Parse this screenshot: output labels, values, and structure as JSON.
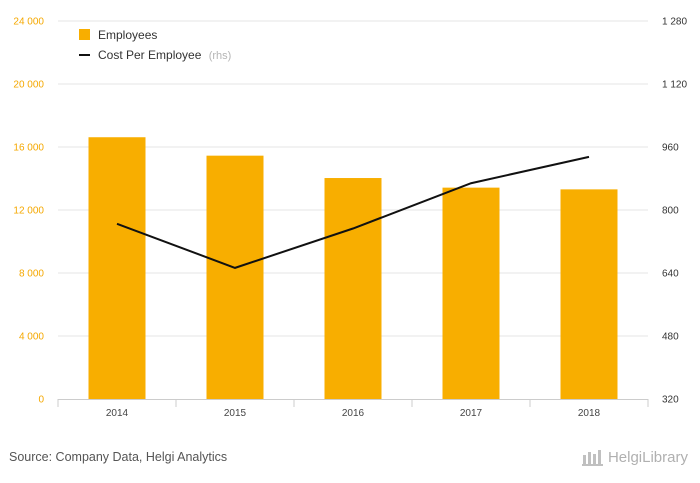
{
  "chart_data": {
    "type": "bar",
    "categories": [
      "2014",
      "2015",
      "2016",
      "2017",
      "2018"
    ],
    "series": [
      {
        "name": "Employees",
        "type": "bar",
        "axis": "left",
        "color": "#f8ae00",
        "values": [
          16620,
          15450,
          14030,
          13420,
          13310
        ]
      },
      {
        "name": "Cost Per Employee",
        "type": "line",
        "axis": "right",
        "color": "#111111",
        "values": [
          765,
          653,
          753,
          868,
          935
        ]
      }
    ],
    "y_left": {
      "ylim": [
        0,
        24000
      ],
      "ticks": [
        "0",
        "4 000",
        "8 000",
        "12 000",
        "16 000",
        "20 000",
        "24 000"
      ]
    },
    "y_right": {
      "ylim": [
        320,
        1280
      ],
      "ticks": [
        "320",
        "480",
        "640",
        "800",
        "960",
        "1 120",
        "1 280"
      ]
    },
    "legend": {
      "position": "top-left",
      "note": "(rhs)"
    },
    "grid": true
  },
  "footer": {
    "source": "Source: Company Data, Helgi Analytics",
    "logo_text": "HelgiLibrary"
  }
}
